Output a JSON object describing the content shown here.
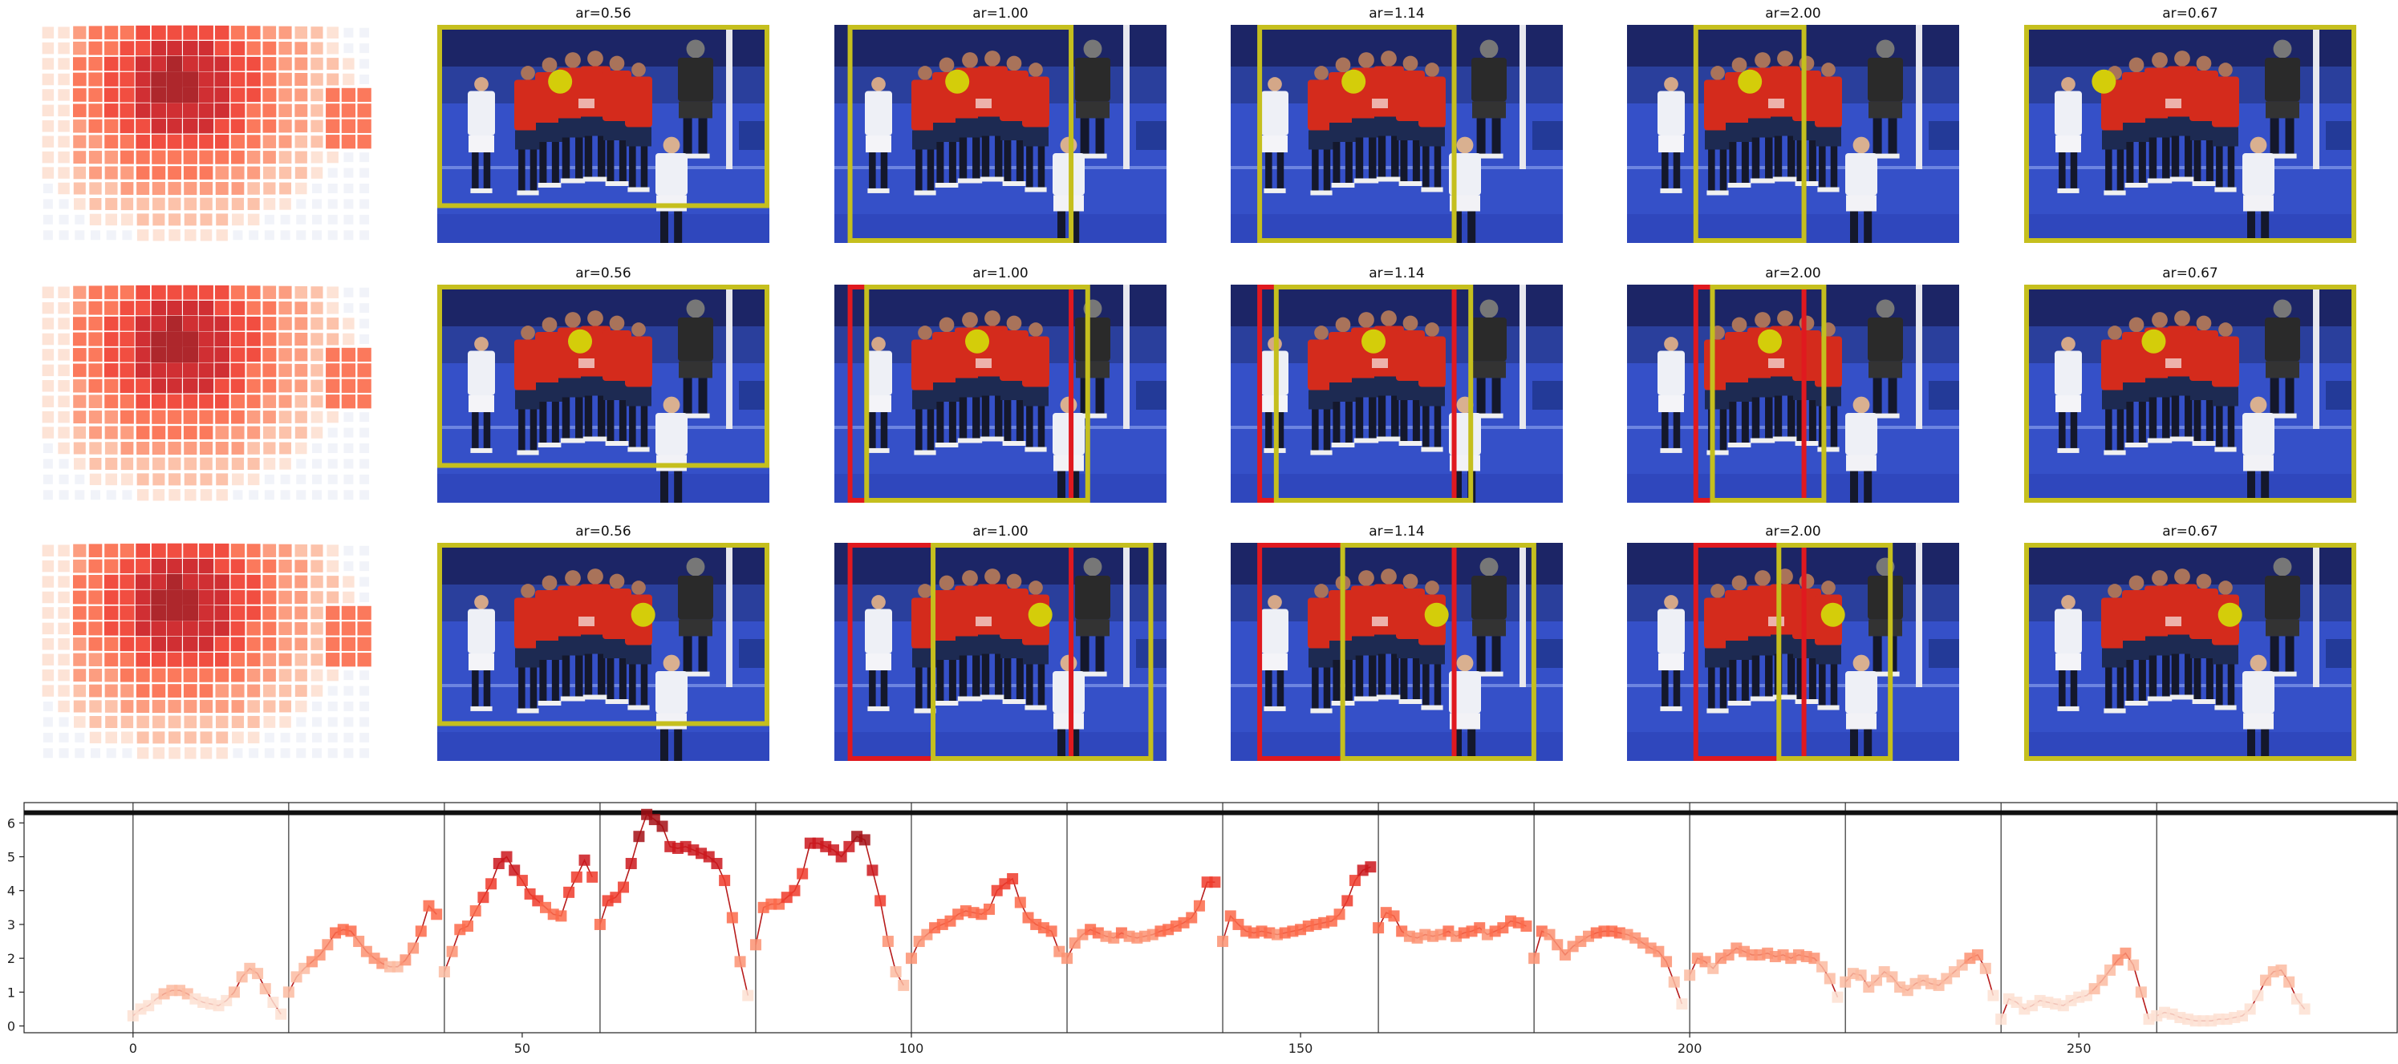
{
  "panels": {
    "rows": [
      {
        "titles": [
          "ar=0.56",
          "ar=1.00",
          "ar=1.14",
          "ar=2.00",
          "ar=0.67"
        ],
        "marker_y": 0.26,
        "marker_x": [
          0.37,
          0.37,
          0.37,
          0.37,
          0.24
        ],
        "yellow_boxes": [
          [
            0.0,
            0.0,
            1.0,
            0.84
          ],
          [
            0.04,
            0.0,
            0.72,
            1.0
          ],
          [
            0.08,
            0.0,
            0.68,
            1.0
          ],
          [
            0.2,
            0.0,
            0.54,
            1.0
          ],
          [
            0.0,
            0.0,
            1.0,
            1.0
          ]
        ],
        "red_boxes": [
          [],
          [],
          [],
          [],
          []
        ]
      },
      {
        "titles": [
          "ar=0.56",
          "ar=1.00",
          "ar=1.14",
          "ar=2.00",
          "ar=0.67"
        ],
        "marker_y": 0.26,
        "marker_x": [
          0.43,
          0.43,
          0.43,
          0.43,
          0.39
        ],
        "yellow_boxes": [
          [
            0.0,
            0.0,
            1.0,
            0.84
          ],
          [
            0.09,
            0.0,
            0.77,
            1.0
          ],
          [
            0.13,
            0.0,
            0.73,
            1.0
          ],
          [
            0.25,
            0.0,
            0.6,
            1.0
          ],
          [
            0.0,
            0.0,
            1.0,
            1.0
          ]
        ],
        "red_boxes": [
          [],
          [
            [
              0.04,
              0.0,
              0.72,
              1.0
            ]
          ],
          [
            [
              0.08,
              0.0,
              0.68,
              1.0
            ]
          ],
          [
            [
              0.2,
              0.0,
              0.54,
              1.0
            ]
          ],
          []
        ]
      },
      {
        "titles": [
          "ar=0.56",
          "ar=1.00",
          "ar=1.14",
          "ar=2.00",
          "ar=0.67"
        ],
        "marker_y": 0.33,
        "marker_x": [
          0.62,
          0.62,
          0.62,
          0.62,
          0.62
        ],
        "yellow_boxes": [
          [
            0.0,
            0.0,
            1.0,
            0.84
          ],
          [
            0.29,
            0.0,
            0.96,
            1.0
          ],
          [
            0.33,
            0.0,
            0.92,
            1.0
          ],
          [
            0.45,
            0.0,
            0.8,
            1.0
          ],
          [
            0.0,
            0.0,
            1.0,
            1.0
          ]
        ],
        "red_boxes": [
          [],
          [
            [
              0.04,
              0.0,
              0.72,
              1.0
            ]
          ],
          [
            [
              0.08,
              0.0,
              0.68,
              1.0
            ]
          ],
          [
            [
              0.2,
              0.0,
              0.54,
              1.0
            ]
          ],
          []
        ]
      }
    ],
    "colors": {
      "box_yellow": "#c5bf1e",
      "box_red": "#e0191f",
      "marker": "#d4cd0a",
      "field_blue": "#3550c8",
      "wall_navy": "#1c2566",
      "jersey_red": "#d42b1c",
      "kit_white": "#eef0f6",
      "keeper_black": "#2a2a2a"
    }
  },
  "chart_data": {
    "type": "line",
    "title": "",
    "xlabel": "",
    "ylabel": "",
    "xlim": [
      -14,
      291
    ],
    "ylim": [
      -0.2,
      6.6
    ],
    "xticks": [
      0,
      50,
      100,
      150,
      200,
      250
    ],
    "yticks": [
      0,
      1,
      2,
      3,
      4,
      5,
      6
    ],
    "grid": false,
    "legend": "none",
    "reference_line": 6.3,
    "segment_boundaries": [
      0,
      20,
      40,
      60,
      80,
      100,
      120,
      140,
      160,
      180,
      200,
      220,
      240,
      260
    ],
    "line_color": "#b71c1c",
    "marker_scale": [
      "#fde0d2",
      "#fcbba1",
      "#fc9272",
      "#fb6a4a",
      "#ef3b2c",
      "#cb181d",
      "#a50f15"
    ],
    "segments": [
      [
        0.3,
        0.5,
        0.6,
        0.8,
        0.95,
        1.05,
        1.05,
        0.95,
        0.8,
        0.7,
        0.65,
        0.6,
        0.75,
        1.0,
        1.45,
        1.7,
        1.55,
        1.1,
        0.7,
        0.35
      ],
      [
        1.0,
        1.45,
        1.7,
        1.9,
        2.1,
        2.4,
        2.75,
        2.85,
        2.8,
        2.5,
        2.2,
        2.0,
        1.85,
        1.75,
        1.75,
        1.95,
        2.3,
        2.8,
        3.55,
        3.3
      ],
      [
        1.6,
        2.2,
        2.85,
        2.95,
        3.4,
        3.8,
        4.2,
        4.8,
        5.0,
        4.6,
        4.3,
        3.9,
        3.7,
        3.5,
        3.3,
        3.25,
        3.95,
        4.4,
        4.9,
        4.4
      ],
      [
        3.0,
        3.7,
        3.8,
        4.1,
        4.8,
        5.6,
        6.25,
        6.1,
        5.9,
        5.3,
        5.25,
        5.3,
        5.2,
        5.1,
        5.0,
        4.8,
        4.3,
        3.2,
        1.9,
        0.9
      ],
      [
        2.4,
        3.5,
        3.6,
        3.6,
        3.8,
        4.0,
        4.5,
        5.4,
        5.4,
        5.3,
        5.2,
        5.0,
        5.3,
        5.6,
        5.5,
        4.6,
        3.7,
        2.5,
        1.6,
        1.2
      ],
      [
        2.0,
        2.5,
        2.7,
        2.9,
        3.0,
        3.1,
        3.3,
        3.4,
        3.35,
        3.3,
        3.45,
        4.0,
        4.2,
        4.35,
        3.65,
        3.2,
        3.0,
        2.9,
        2.8,
        2.2
      ],
      [
        2.0,
        2.45,
        2.7,
        2.85,
        2.75,
        2.65,
        2.6,
        2.75,
        2.65,
        2.6,
        2.65,
        2.7,
        2.8,
        2.85,
        2.95,
        3.05,
        3.2,
        3.55,
        4.25,
        4.25
      ],
      [
        2.5,
        3.25,
        3.0,
        2.8,
        2.75,
        2.8,
        2.75,
        2.7,
        2.75,
        2.8,
        2.85,
        2.95,
        3.0,
        3.05,
        3.1,
        3.3,
        3.7,
        4.3,
        4.6,
        4.7
      ],
      [
        2.9,
        3.35,
        3.25,
        2.8,
        2.65,
        2.6,
        2.7,
        2.65,
        2.7,
        2.8,
        2.65,
        2.75,
        2.8,
        2.9,
        2.7,
        2.8,
        2.9,
        3.1,
        3.05,
        2.95
      ],
      [
        2.0,
        2.8,
        2.7,
        2.4,
        2.1,
        2.35,
        2.5,
        2.65,
        2.75,
        2.8,
        2.8,
        2.75,
        2.7,
        2.6,
        2.45,
        2.3,
        2.2,
        1.9,
        1.3,
        0.65
      ],
      [
        1.5,
        2.0,
        1.9,
        1.7,
        2.0,
        2.1,
        2.3,
        2.2,
        2.1,
        2.1,
        2.15,
        2.05,
        2.1,
        2.0,
        2.1,
        2.05,
        2.0,
        1.75,
        1.4,
        0.85
      ],
      [
        1.3,
        1.55,
        1.5,
        1.15,
        1.35,
        1.6,
        1.45,
        1.15,
        1.05,
        1.25,
        1.35,
        1.25,
        1.2,
        1.4,
        1.6,
        1.8,
        2.0,
        2.1,
        1.7,
        0.9
      ],
      [
        0.2,
        0.8,
        0.7,
        0.5,
        0.6,
        0.75,
        0.7,
        0.65,
        0.6,
        0.75,
        0.85,
        0.9,
        1.1,
        1.35,
        1.65,
        1.95,
        2.15,
        1.8,
        1.0,
        0.2
      ],
      [
        0.3,
        0.4,
        0.35,
        0.25,
        0.2,
        0.15,
        0.15,
        0.15,
        0.2,
        0.2,
        0.25,
        0.3,
        0.5,
        0.9,
        1.35,
        1.6,
        1.65,
        1.3,
        0.8,
        0.5
      ]
    ]
  }
}
